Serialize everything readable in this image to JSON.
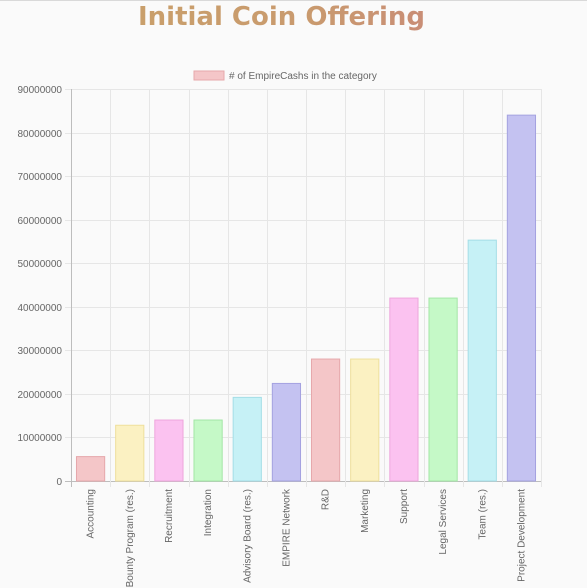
{
  "page": {
    "title": "Initial Coin Offering"
  },
  "chart_data": {
    "type": "bar",
    "title": "",
    "xlabel": "",
    "ylabel": "",
    "legend": {
      "position": "top",
      "entries": [
        "# of EmpireCashs in the category"
      ]
    },
    "grid": true,
    "ylim": [
      0,
      90000000
    ],
    "yticks": [
      0,
      10000000,
      20000000,
      30000000,
      40000000,
      50000000,
      60000000,
      70000000,
      80000000,
      90000000
    ],
    "categories": [
      "Accounting",
      "Bounty Program (res.)",
      "Recruitment",
      "Integration",
      "Advisory Board (res.)",
      "EMPIRE Network",
      "R&D",
      "Marketing",
      "Support",
      "Legal Services",
      "Team (res.)",
      "Project Development"
    ],
    "series": [
      {
        "name": "# of EmpireCashs in the category",
        "values": [
          5600000,
          12800000,
          14000000,
          14000000,
          19200000,
          22400000,
          28000000,
          28000000,
          42000000,
          42000000,
          55300000,
          84000000
        ]
      }
    ],
    "colors": {
      "fills": [
        "#f4c6c8",
        "#fbf1c2",
        "#fbc2f0",
        "#c5f9c7",
        "#c6f1f6",
        "#c4c2f1",
        "#f4c6c8",
        "#fbf1c2",
        "#fbc2f0",
        "#c5f9c7",
        "#c6f1f6",
        "#c4c2f1"
      ],
      "strokes": [
        "#e6a8ab",
        "#eedf9c",
        "#eea6dc",
        "#a3e6a6",
        "#a3dde6",
        "#a5a2e0",
        "#e6a8ab",
        "#eedf9c",
        "#eea6dc",
        "#a3e6a6",
        "#a3dde6",
        "#a5a2e0"
      ]
    }
  }
}
